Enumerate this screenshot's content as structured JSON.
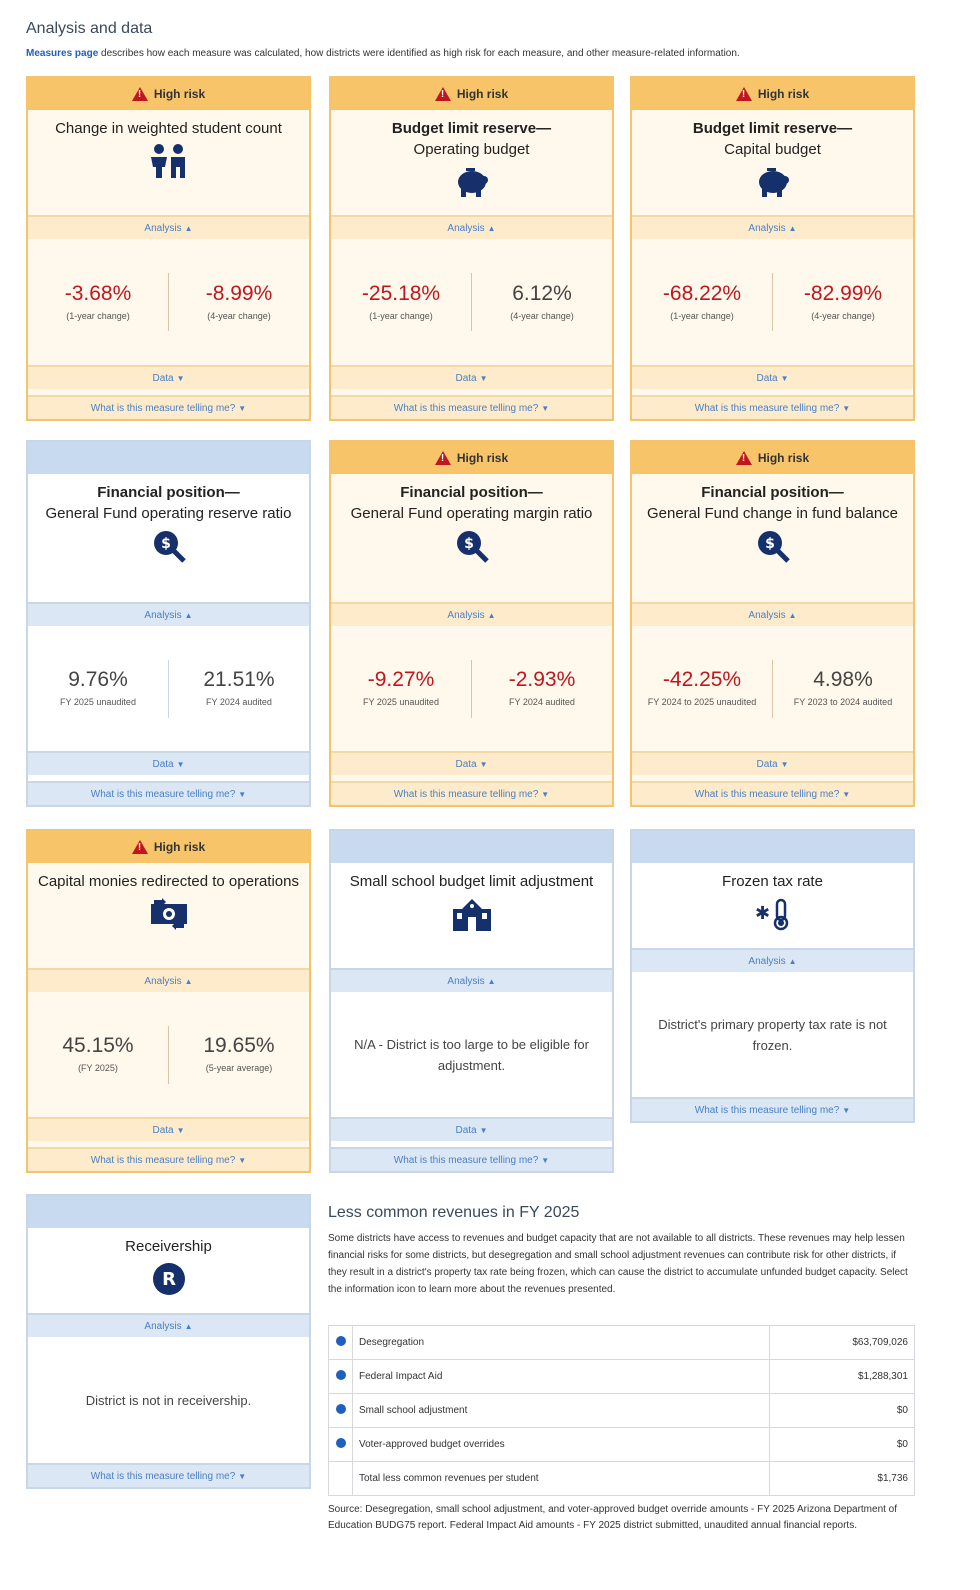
{
  "page": {
    "title": "Analysis and data",
    "intro_link": "Measures page",
    "intro_text": " describes how each measure was calculated, how districts were identified as high risk for each measure, and other measure-related information."
  },
  "labels": {
    "high_risk": "High risk",
    "analysis": "Analysis",
    "data": "Data",
    "telling": "What is this measure telling me?"
  },
  "cards": [
    {
      "title": "Change in weighted student count",
      "v1": "-3.68%",
      "l1": "(1-year change)",
      "v2": "-8.99%",
      "l2": "(4-year change)"
    },
    {
      "title_bold": "Budget limit reserve—",
      "title_rest": "Operating budget",
      "v1": "-25.18%",
      "l1": "(1-year change)",
      "v2": "6.12%",
      "l2": "(4-year change)"
    },
    {
      "title_bold": "Budget limit reserve—",
      "title_rest": "Capital budget",
      "v1": "-68.22%",
      "l1": "(1-year change)",
      "v2": "-82.99%",
      "l2": "(4-year change)"
    },
    {
      "title_bold": "Financial position—",
      "title_rest": "General Fund operating reserve ratio",
      "v1": "9.76%",
      "l1": "FY 2025 unaudited",
      "v2": "21.51%",
      "l2": "FY 2024 audited"
    },
    {
      "title_bold": "Financial position—",
      "title_rest": "General Fund operating margin ratio",
      "v1": "-9.27%",
      "l1": "FY 2025 unaudited",
      "v2": "-2.93%",
      "l2": "FY 2024 audited"
    },
    {
      "title_bold": "Financial position—",
      "title_rest": "General Fund change in fund balance",
      "v1": "-42.25%",
      "l1": "FY 2024 to 2025 unaudited",
      "v2": "4.98%",
      "l2": "FY 2023 to 2024 audited"
    },
    {
      "title": "Capital monies redirected to operations",
      "v1": "45.15%",
      "l1": "(FY 2025)",
      "v2": "19.65%",
      "l2": "(5-year average)"
    },
    {
      "title": "Small school budget limit adjustment",
      "msg": "N/A - District is too large to be eligible for adjustment."
    },
    {
      "title": "Frozen tax rate",
      "msg": "District's primary property tax rate is not frozen."
    },
    {
      "title": "Receivership",
      "msg": "District is not in receivership."
    }
  ],
  "less_common": {
    "title": "Less common revenues in FY 2025",
    "description": "Some districts have access to revenues and budget capacity that are not available to all districts. These revenues may help lessen financial risks for some districts, but desegregation and small school adjustment revenues can contribute risk for other districts, if they result in a district's property tax rate being frozen, which can cause the district to accumulate unfunded budget capacity. Select the information icon to learn more about the revenues presented.",
    "rows": [
      {
        "label": "Desegregation",
        "amount": "$63,709,026"
      },
      {
        "label": "Federal Impact Aid",
        "amount": "$1,288,301"
      },
      {
        "label": "Small school adjustment",
        "amount": "$0"
      },
      {
        "label": "Voter-approved budget overrides",
        "amount": "$0"
      }
    ],
    "total": {
      "label": "Total less common revenues per student",
      "amount": "$1,736"
    },
    "source": "Source: Desegregation, small school adjustment, and voter-approved budget override amounts - FY 2025 Arizona Department of Education BUDG75 report. Federal Impact Aid amounts - FY 2025 district submitted, unaudited annual financial reports."
  },
  "colors": {
    "risk_header": "#f8c46a",
    "neutral_header": "#c7daf0",
    "negative": "#c0161d",
    "icon": "#16306b"
  }
}
